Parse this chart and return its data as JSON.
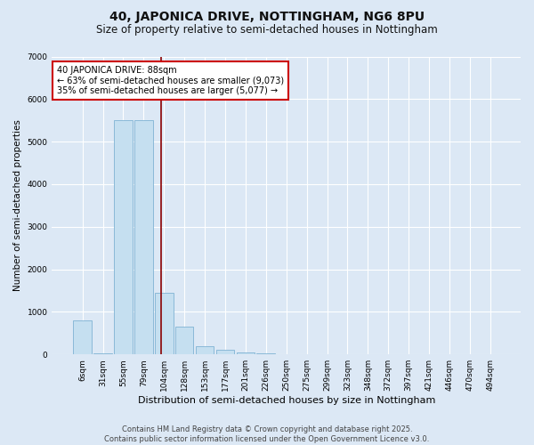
{
  "title": "40, JAPONICA DRIVE, NOTTINGHAM, NG6 8PU",
  "subtitle": "Size of property relative to semi-detached houses in Nottingham",
  "xlabel": "Distribution of semi-detached houses by size in Nottingham",
  "ylabel": "Number of semi-detached properties",
  "categories": [
    "6sqm",
    "31sqm",
    "55sqm",
    "79sqm",
    "104sqm",
    "128sqm",
    "153sqm",
    "177sqm",
    "201sqm",
    "226sqm",
    "250sqm",
    "275sqm",
    "299sqm",
    "323sqm",
    "348sqm",
    "372sqm",
    "397sqm",
    "421sqm",
    "446sqm",
    "470sqm",
    "494sqm"
  ],
  "values": [
    800,
    20,
    5500,
    5500,
    1450,
    650,
    200,
    100,
    50,
    20,
    0,
    0,
    0,
    0,
    0,
    0,
    0,
    0,
    0,
    0,
    0
  ],
  "bar_color": "#c5dff0",
  "bar_edgecolor": "#7fb3d3",
  "vline_x": 3.85,
  "vline_color": "#8b0000",
  "annotation_text": "40 JAPONICA DRIVE: 88sqm\n← 63% of semi-detached houses are smaller (9,073)\n35% of semi-detached houses are larger (5,077) →",
  "annotation_box_color": "#ffffff",
  "annotation_box_edgecolor": "#cc0000",
  "ylim": [
    0,
    7000
  ],
  "yticks": [
    0,
    1000,
    2000,
    3000,
    4000,
    5000,
    6000,
    7000
  ],
  "footer_line1": "Contains HM Land Registry data © Crown copyright and database right 2025.",
  "footer_line2": "Contains public sector information licensed under the Open Government Licence v3.0.",
  "bg_color": "#dce8f5",
  "plot_bg_color": "#dce8f5",
  "title_fontsize": 10,
  "subtitle_fontsize": 8.5,
  "xlabel_fontsize": 8,
  "ylabel_fontsize": 7.5,
  "tick_fontsize": 6.5,
  "annotation_fontsize": 7,
  "footer_fontsize": 6
}
